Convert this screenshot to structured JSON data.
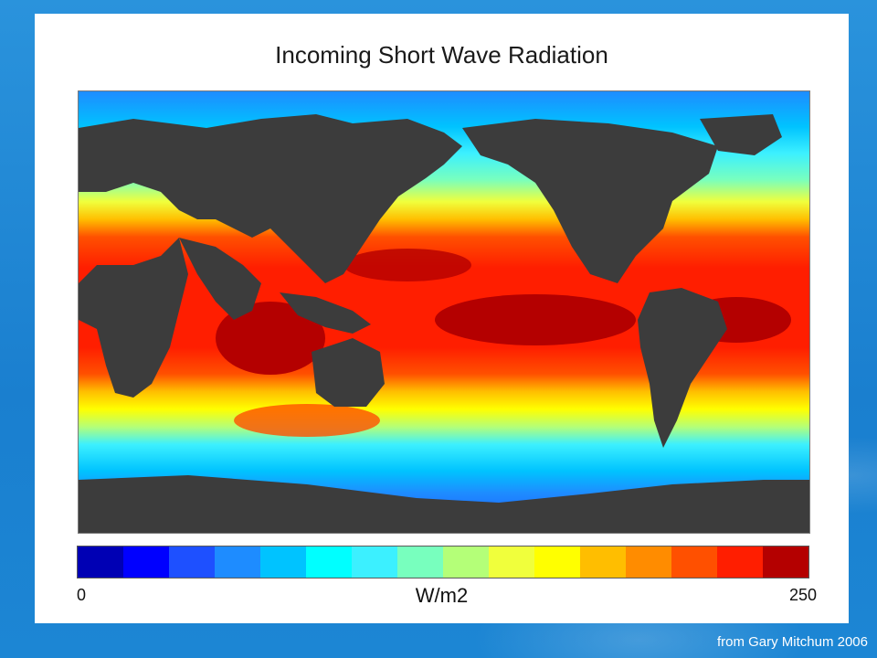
{
  "map": {
    "title": "Incoming Short Wave Radiation",
    "unit_label": "W/m2",
    "scale_min_label": "0",
    "scale_max_label": "250",
    "colorbar": [
      "#0000b4",
      "#0000ff",
      "#1e50ff",
      "#1e8cff",
      "#00c3ff",
      "#00ffff",
      "#3cf0ff",
      "#78ffbe",
      "#b4ff78",
      "#f0ff3c",
      "#ffff00",
      "#ffbe00",
      "#ff8c00",
      "#ff5000",
      "#ff1e00",
      "#b40000"
    ],
    "land_color": "#3c3c3c"
  },
  "credit": "from Gary Mitchum 2006"
}
